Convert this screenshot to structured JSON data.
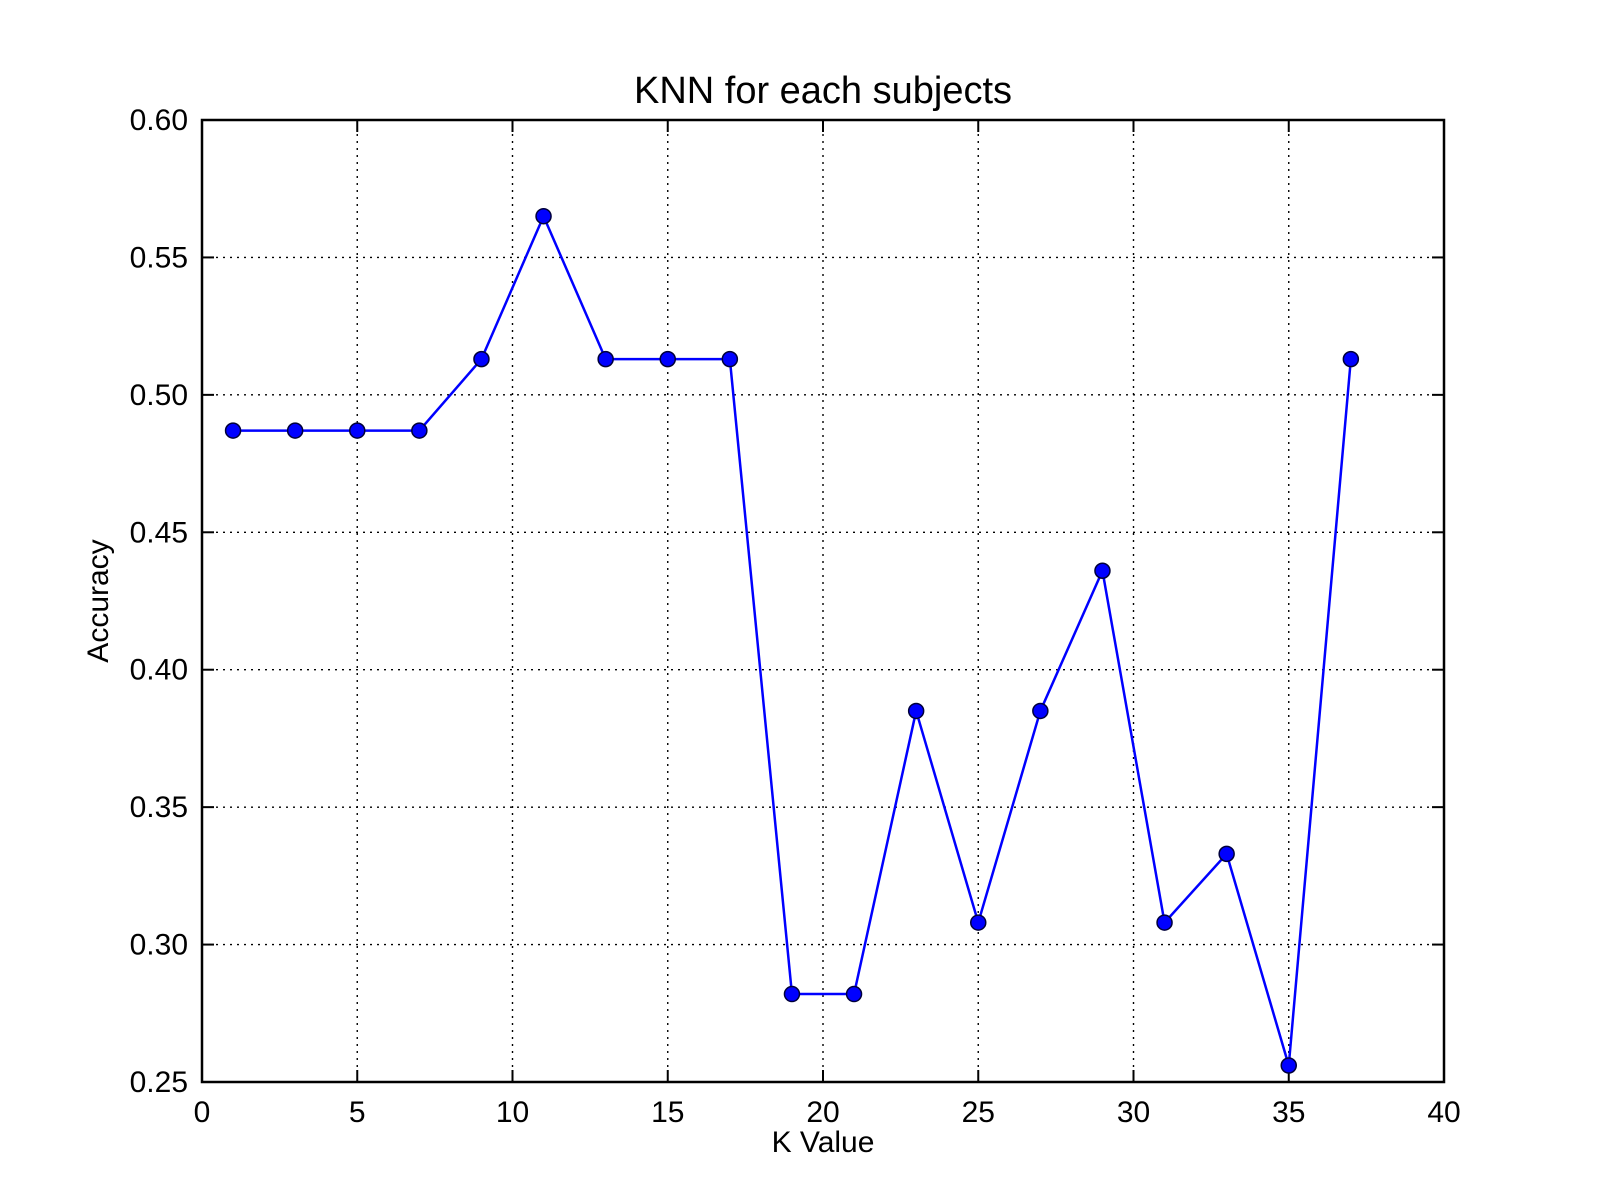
{
  "chart_data": {
    "type": "line",
    "title": "KNN for each subjects",
    "xlabel": "K Value",
    "ylabel": "Accuracy",
    "xlim": [
      0,
      40
    ],
    "ylim": [
      0.25,
      0.6
    ],
    "xticks": [
      0,
      5,
      10,
      15,
      20,
      25,
      30,
      35,
      40
    ],
    "yticks": [
      0.25,
      0.3,
      0.35,
      0.4,
      0.45,
      0.5,
      0.55,
      0.6
    ],
    "xtick_labels": [
      "0",
      "5",
      "10",
      "15",
      "20",
      "25",
      "30",
      "35",
      "40"
    ],
    "ytick_labels": [
      "0.25",
      "0.30",
      "0.35",
      "0.40",
      "0.45",
      "0.50",
      "0.55",
      "0.60"
    ],
    "grid": true,
    "legend": "none",
    "series": [
      {
        "color": "#0000ff",
        "marker": "circle",
        "x": [
          1,
          3,
          5,
          7,
          9,
          11,
          13,
          15,
          17,
          19,
          21,
          23,
          25,
          27,
          29,
          31,
          33,
          35,
          37
        ],
        "y": [
          0.487,
          0.487,
          0.487,
          0.487,
          0.513,
          0.565,
          0.513,
          0.513,
          0.513,
          0.282,
          0.282,
          0.385,
          0.308,
          0.385,
          0.436,
          0.308,
          0.333,
          0.256,
          0.513
        ]
      }
    ]
  }
}
